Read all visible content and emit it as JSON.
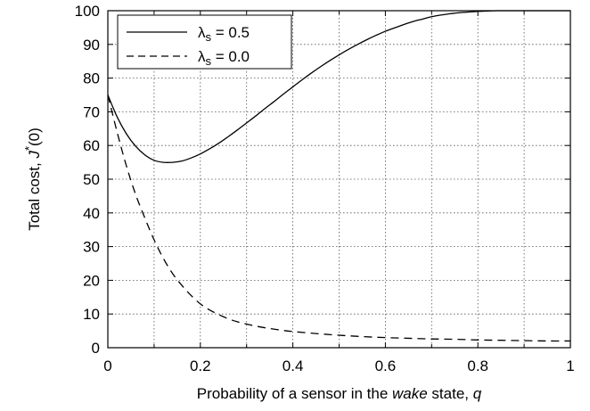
{
  "chart_data": {
    "type": "line",
    "xlabel": {
      "parts": [
        "Probability of a sensor in the ",
        "wake",
        " state, ",
        "q"
      ]
    },
    "ylabel": {
      "parts": [
        "Total cost, ",
        "J",
        "*",
        "(0)"
      ]
    },
    "xlim": [
      0,
      1
    ],
    "ylim": [
      0,
      100
    ],
    "x_ticks": [
      "0",
      "0.2",
      "0.4",
      "0.6",
      "0.8",
      "1"
    ],
    "y_ticks": [
      "0",
      "10",
      "20",
      "30",
      "40",
      "50",
      "60",
      "70",
      "80",
      "90",
      "100"
    ],
    "grid": true,
    "legend_position": "top-left",
    "series": [
      {
        "name": "λs = 0.5",
        "name_parts": [
          "λ",
          "s",
          " = 0.5"
        ],
        "style": "solid",
        "color": "#000000",
        "x": [
          0,
          0.02,
          0.04,
          0.06,
          0.08,
          0.1,
          0.12,
          0.14,
          0.16,
          0.18,
          0.2,
          0.22,
          0.24,
          0.26,
          0.28,
          0.3,
          0.32,
          0.34,
          0.36,
          0.38,
          0.4,
          0.42,
          0.44,
          0.46,
          0.48,
          0.5,
          0.52,
          0.54,
          0.56,
          0.58,
          0.6,
          0.62,
          0.64,
          0.66,
          0.68,
          0.7,
          0.72,
          0.74,
          0.76,
          0.78,
          0.8,
          0.82,
          0.84,
          0.86,
          0.88,
          0.9,
          0.92,
          0.94,
          0.96,
          0.98,
          1
        ],
        "y": [
          75,
          68.5,
          63.5,
          59.8,
          57.2,
          55.6,
          55.0,
          55.0,
          55.4,
          56.3,
          57.5,
          59.0,
          60.7,
          62.6,
          64.6,
          66.7,
          68.8,
          71.0,
          73.1,
          75.3,
          77.4,
          79.5,
          81.5,
          83.4,
          85.2,
          86.9,
          88.5,
          90.0,
          91.4,
          92.7,
          93.9,
          94.9,
          95.9,
          96.8,
          97.5,
          98.2,
          98.7,
          99.1,
          99.4,
          99.6,
          99.8,
          99.9,
          100,
          100,
          100,
          100,
          100,
          100,
          100,
          100,
          100
        ]
      },
      {
        "name": "λs = 0.0",
        "name_parts": [
          "λ",
          "s",
          " = 0.0"
        ],
        "style": "dashed",
        "color": "#000000",
        "x": [
          0,
          0.02,
          0.04,
          0.06,
          0.08,
          0.1,
          0.12,
          0.14,
          0.16,
          0.18,
          0.2,
          0.22,
          0.24,
          0.26,
          0.28,
          0.3,
          0.32,
          0.34,
          0.36,
          0.38,
          0.4,
          0.45,
          0.5,
          0.55,
          0.6,
          0.65,
          0.7,
          0.75,
          0.8,
          0.85,
          0.9,
          0.95,
          1
        ],
        "y": [
          75,
          64,
          54,
          45.5,
          38.5,
          32,
          26.5,
          22,
          18.5,
          15.5,
          13,
          11.2,
          9.8,
          8.6,
          7.7,
          7.0,
          6.4,
          5.9,
          5.5,
          5.1,
          4.8,
          4.2,
          3.7,
          3.3,
          3.0,
          2.8,
          2.6,
          2.5,
          2.3,
          2.2,
          2.1,
          2.0,
          2.0
        ]
      }
    ]
  }
}
